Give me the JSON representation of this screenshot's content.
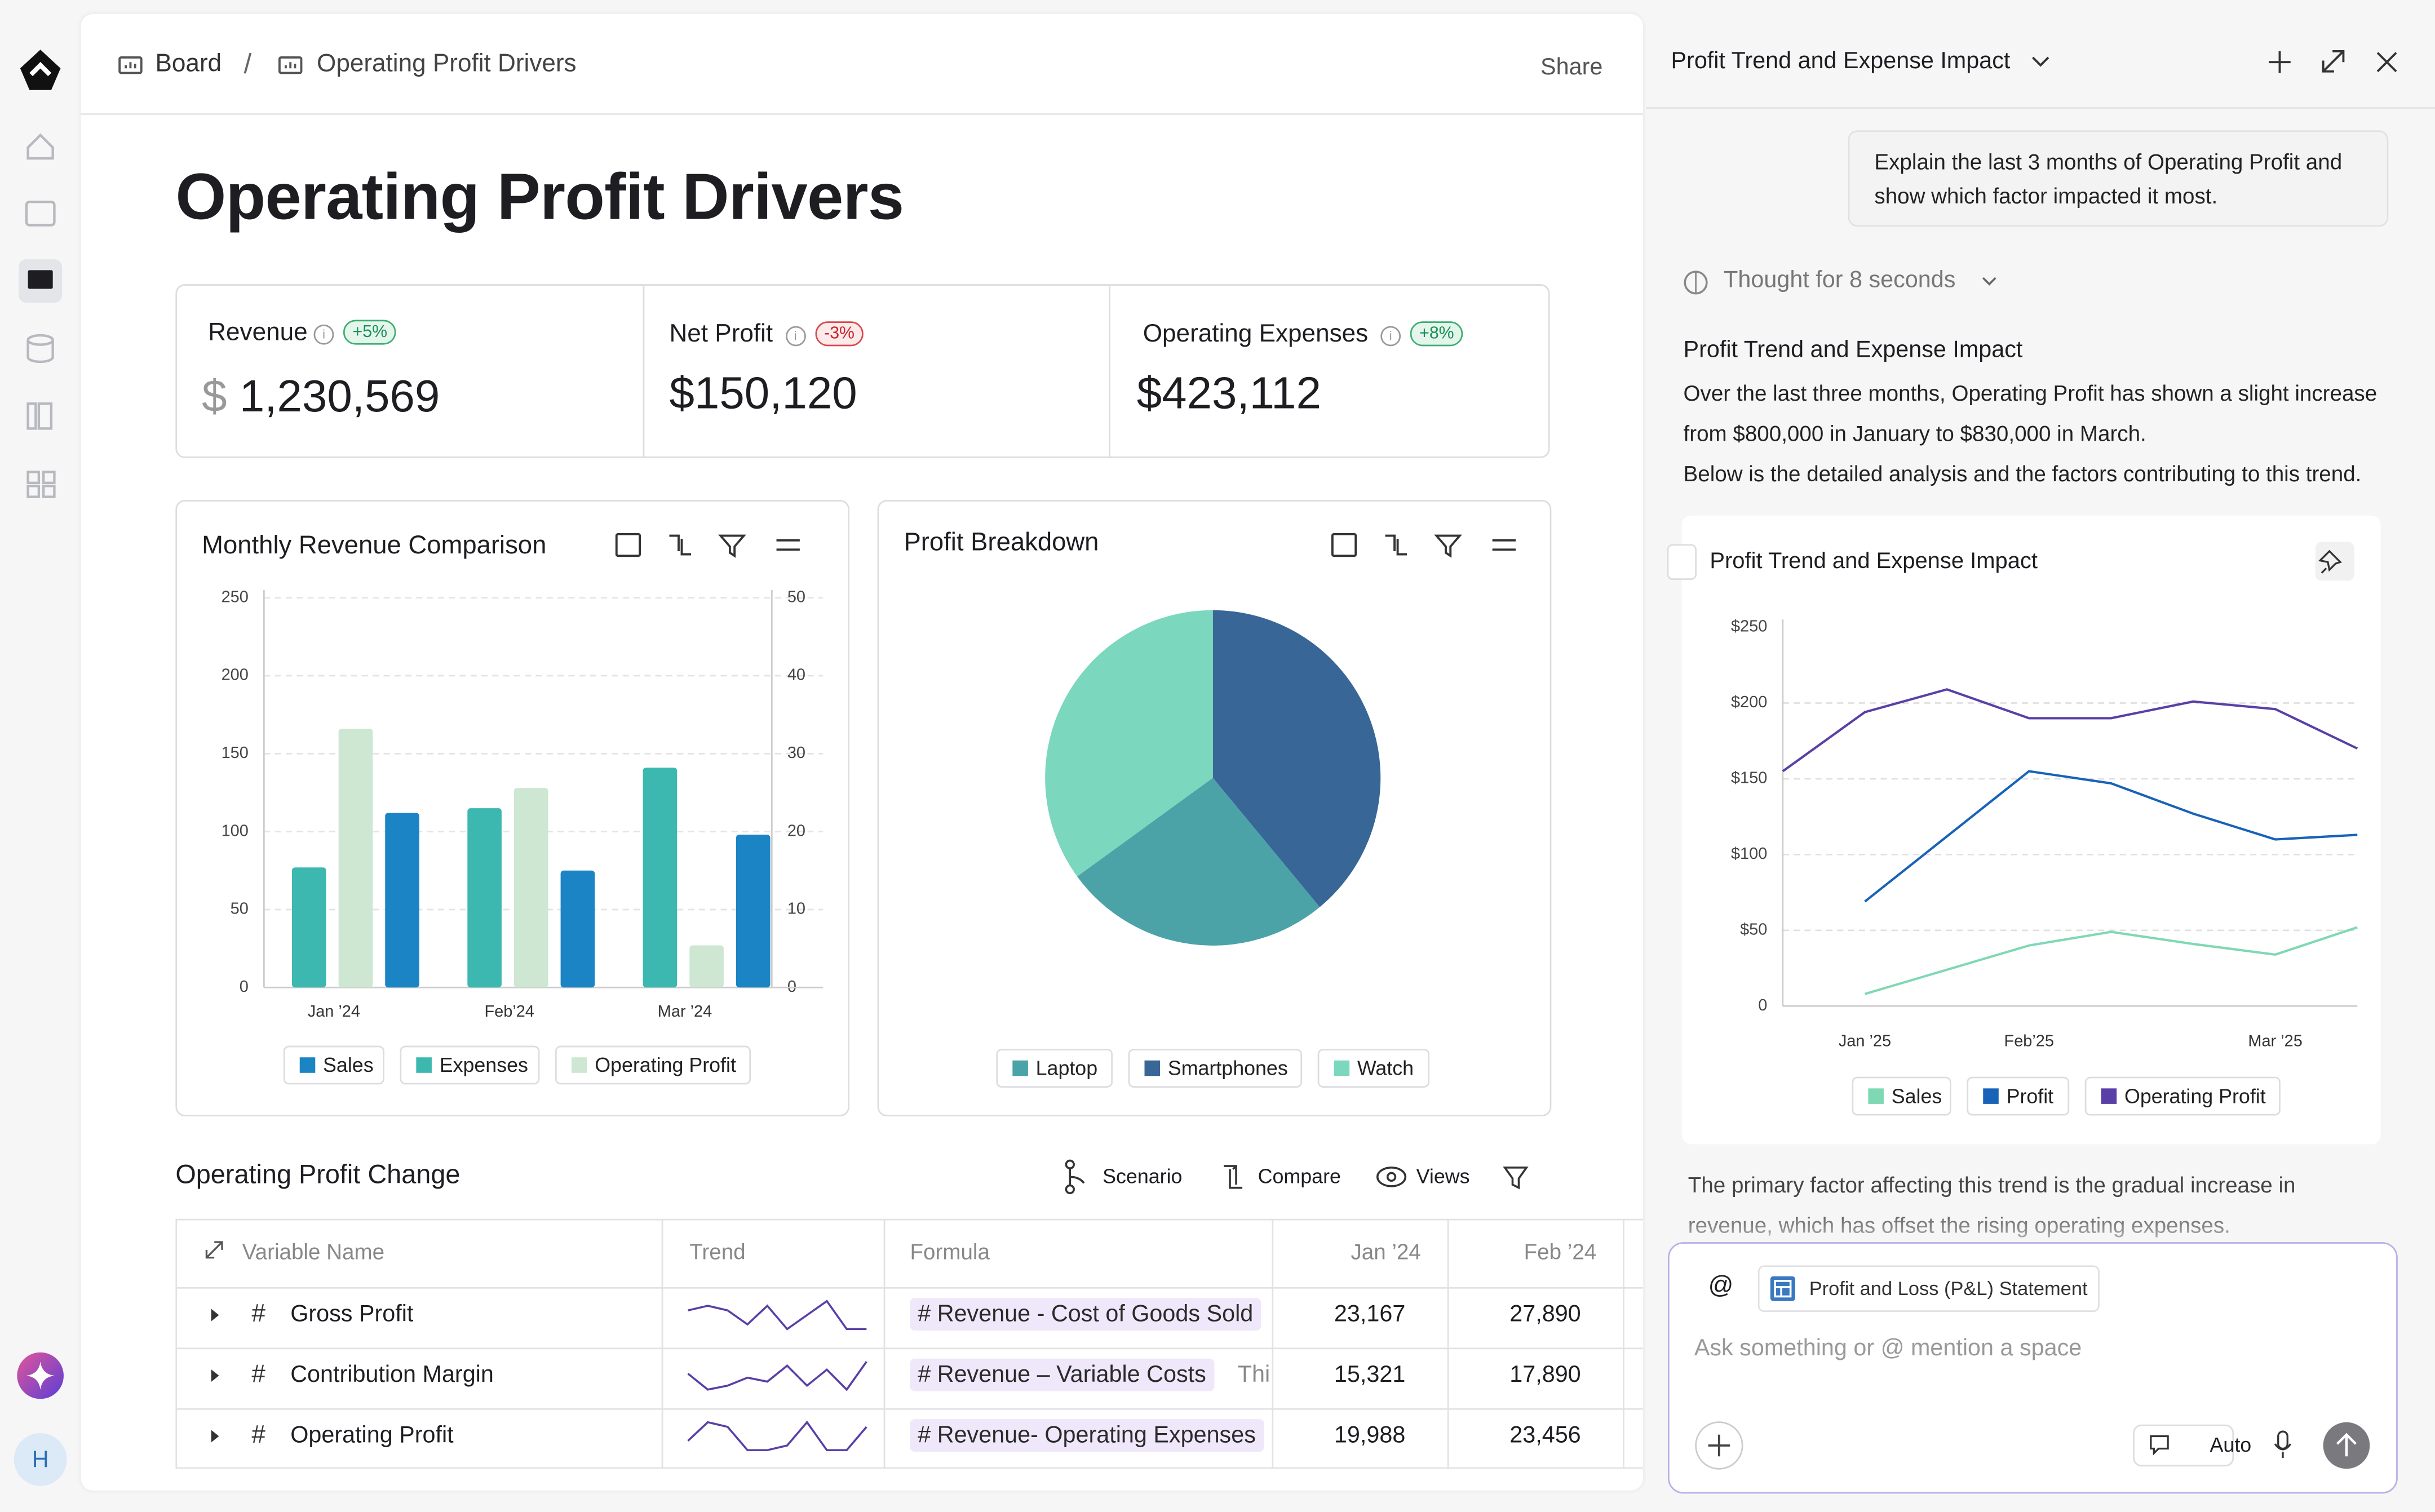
{
  "header": {
    "breadcrumb": [
      "Board",
      "Operating Profit Drivers"
    ],
    "share": "Share"
  },
  "sidebar": {
    "avatar": "H"
  },
  "page_title": "Operating Profit Drivers",
  "kpis": [
    {
      "label": "Revenue",
      "badge": "+5%",
      "currency": "$",
      "value": "1,230,569"
    },
    {
      "label": "Net Profit",
      "badge": "-3%",
      "value": "$150,120"
    },
    {
      "label": "Operating Expenses",
      "badge": "+8%",
      "value": "$423,112"
    }
  ],
  "revenue_chart": {
    "type": "bar",
    "title": "Monthly Revenue Comparison",
    "categories": [
      "Jan ’24",
      "Feb’24",
      "Mar ’24"
    ],
    "series": [
      {
        "name": "Sales",
        "color": "#1a84c4",
        "values": [
          112,
          75,
          98
        ]
      },
      {
        "name": "Expenses",
        "color": "#3db8b0",
        "values": [
          77,
          115,
          141
        ]
      },
      {
        "name": "Operating Profit",
        "color": "#cde7d3",
        "values": [
          166,
          128,
          27
        ]
      }
    ],
    "ylim": [
      0,
      250
    ],
    "yticks": [
      0,
      50,
      100,
      150,
      200,
      250
    ],
    "y2lim": [
      0,
      50
    ],
    "y2ticks": [
      0,
      10,
      20,
      30,
      40,
      50
    ],
    "grid": true
  },
  "profit_chart": {
    "type": "pie",
    "title": "Profit Breakdown",
    "categories": [
      "Laptop",
      "Smartphones",
      "Watch"
    ],
    "values": [
      26,
      39,
      35
    ],
    "colors": [
      "#4ba3a8",
      "#376697",
      "#7bd7be"
    ]
  },
  "table": {
    "title": "Operating Profit Change",
    "tools": [
      "Scenario",
      "Compare",
      "Views"
    ],
    "columns": [
      "Variable Name",
      "Trend",
      "Formula",
      "Jan ’24",
      "Feb ’24"
    ],
    "rows": [
      {
        "name": "Gross Profit",
        "trend": [
          6,
          7,
          6,
          3,
          7,
          2,
          5,
          8,
          2,
          2
        ],
        "formula": "# Revenue - Cost of Goods Sold",
        "cells": [
          "23,167",
          "27,890"
        ]
      },
      {
        "name": "Contribution Margin",
        "trend": [
          5,
          1,
          2,
          4,
          3,
          7,
          2,
          6,
          1,
          8
        ],
        "formula": "# Revenue – Variable Costs",
        "formula_note": "Thi",
        "cells": [
          "15,321",
          "17,890"
        ]
      },
      {
        "name": "Operating Profit",
        "trend": [
          3,
          7,
          6,
          1,
          1,
          2,
          7,
          1,
          1,
          6
        ],
        "formula": "# Revenue- Operating Expenses",
        "cells": [
          "19,988",
          "23,456"
        ]
      }
    ]
  },
  "panel": {
    "title": "Profit Trend and Expense Impact",
    "user_message": "Explain the last 3 months of Operating Profit and show which factor impacted it most.",
    "thought": "Thought for 8 seconds",
    "answer_title": "Profit Trend and Expense Impact",
    "answer_paragraphs": [
      "Over the last three months, Operating Profit has shown a slight increase from $800,000 in January to $830,000 in March.",
      "Below is the detailed analysis and the factors contributing to this trend."
    ],
    "chart": {
      "type": "line",
      "title": "Profit Trend and Expense Impact",
      "x": [
        null,
        "Jan ’25",
        null,
        "Feb’25",
        null,
        null,
        "Mar ’25",
        null
      ],
      "series": [
        {
          "name": "Sales",
          "color": "#7fd8b4",
          "values": [
            null,
            8,
            24,
            40,
            49,
            41,
            34,
            52
          ]
        },
        {
          "name": "Profit",
          "color": "#1862b8",
          "values": [
            null,
            69,
            112,
            155,
            147,
            127,
            110,
            113
          ]
        },
        {
          "name": "Operating Profit",
          "color": "#5a3fa6",
          "values": [
            155,
            194,
            209,
            190,
            190,
            201,
            196,
            170
          ]
        }
      ],
      "ylim": [
        0,
        250
      ],
      "yticks": [
        {
          "value": 0,
          "label": "0"
        },
        {
          "value": 50,
          "label": "$50"
        },
        {
          "value": 100,
          "label": "$100"
        },
        {
          "value": 150,
          "label": "$150"
        },
        {
          "value": 200,
          "label": "$200"
        },
        {
          "value": 250,
          "label": "$250"
        }
      ],
      "grid": true
    },
    "followup": "The primary factor affecting this trend is the gradual increase in revenue, which has offset the rising operating expenses.",
    "input": {
      "mention": "@",
      "chip": "Profit and Loss (P&L) Statement",
      "placeholder": "Ask something or @ mention a space",
      "mode": "Auto"
    }
  }
}
